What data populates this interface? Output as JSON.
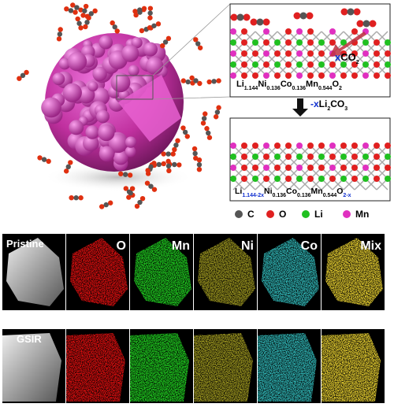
{
  "reaction": {
    "co2_label": [
      {
        "text": "x"
      },
      {
        "text": "CO"
      },
      {
        "text": "2",
        "sub": true
      }
    ],
    "top_formula": [
      {
        "text": "Li"
      },
      {
        "text": "1.144",
        "sub": true
      },
      {
        "text": "Ni"
      },
      {
        "text": "0.136",
        "sub": true
      },
      {
        "text": "Co"
      },
      {
        "text": "0.136",
        "sub": true
      },
      {
        "text": "Mn"
      },
      {
        "text": "0.544",
        "sub": true
      },
      {
        "text": "O"
      },
      {
        "text": "2",
        "sub": true
      }
    ],
    "step_label": [
      {
        "text": "-x"
      },
      {
        "text": "Li"
      },
      {
        "text": "2",
        "sub": true
      },
      {
        "text": "CO"
      },
      {
        "text": "3",
        "sub": true
      }
    ],
    "bottom_formula": [
      {
        "text": "Li"
      },
      {
        "text": "1.144-2x",
        "sub": true
      },
      {
        "text": "Ni"
      },
      {
        "text": "0.136",
        "sub": true
      },
      {
        "text": "Co"
      },
      {
        "text": "0.136",
        "sub": true
      },
      {
        "text": "Mn"
      },
      {
        "text": "0.544",
        "sub": true
      },
      {
        "text": "O"
      },
      {
        "text": "2-x",
        "sub": true
      }
    ]
  },
  "legend": [
    "C",
    "O",
    "Li",
    "Mn"
  ],
  "maps": {
    "rows": [
      "Pristine",
      "GSIR"
    ],
    "columns": [
      "O",
      "Mn",
      "Ni",
      "Co",
      "Mix"
    ]
  }
}
